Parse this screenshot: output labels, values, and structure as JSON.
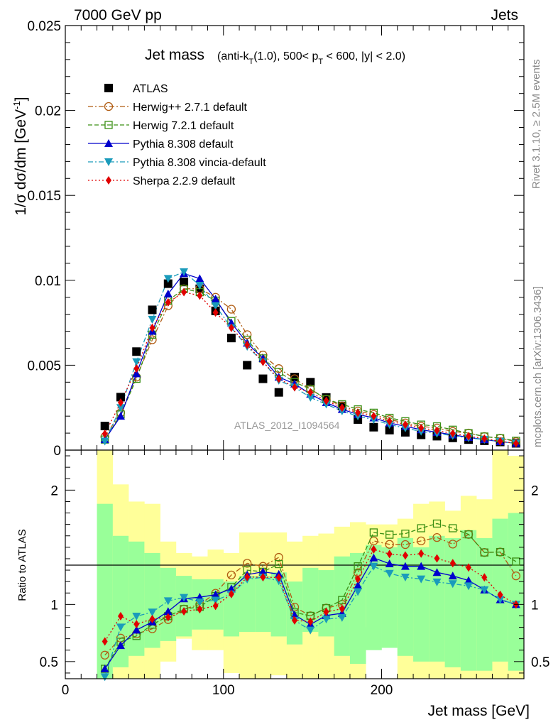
{
  "header": {
    "left": "7000 GeV pp",
    "right": "Jets"
  },
  "side_texts": {
    "rivet": "Rivet 3.1.10, ≥ 2.5M events",
    "mcplots": "mcplots.cern.ch [arXiv:1306.3436]"
  },
  "watermark": "ATLAS_2012_I1094564",
  "chart_data": {
    "type": "scatter",
    "title_main": "Jet mass",
    "title_detail_parts": [
      "(anti-k",
      "T",
      "(1.0), 500< p",
      "T",
      " < 600, |y| < 2.0)"
    ],
    "xlabel": "Jet mass [GeV]",
    "ylabel_parts": [
      "1/σ dσ/dm [GeV",
      "-1",
      "]"
    ],
    "ratio_ylabel": "Ratio to ATLAS",
    "xlim": [
      0,
      290
    ],
    "ylim": [
      0,
      0.025
    ],
    "ratio_ylim": [
      0.35,
      2.35
    ],
    "x_ticks": [
      0,
      100,
      200
    ],
    "y_ticks": [
      0,
      0.005,
      0.01,
      0.015,
      0.02,
      0.025
    ],
    "y_tick_labels": [
      "0",
      "0.005",
      "0.01",
      "0.015",
      "0.02",
      "0.025"
    ],
    "ratio_ticks": [
      0.5,
      1,
      2
    ],
    "ratio_tick_labels": [
      "0.5",
      "1",
      "2"
    ],
    "bin_edges": [
      20,
      30,
      40,
      50,
      60,
      70,
      80,
      90,
      100,
      110,
      120,
      130,
      140,
      150,
      160,
      170,
      180,
      190,
      200,
      210,
      220,
      230,
      240,
      250,
      260,
      270,
      280,
      290
    ],
    "x": [
      25,
      35,
      45,
      55,
      65,
      75,
      85,
      95,
      105,
      115,
      125,
      135,
      145,
      155,
      165,
      175,
      185,
      195,
      205,
      215,
      225,
      235,
      245,
      255,
      265,
      275,
      285
    ],
    "band_inner_up": [
      1.88,
      1.6,
      1.55,
      1.45,
      1.32,
      1.25,
      1.22,
      1.22,
      1.2,
      1.25,
      1.25,
      1.28,
      1.2,
      1.32,
      1.3,
      1.42,
      1.45,
      1.52,
      1.5,
      1.58,
      1.5,
      1.6,
      1.58,
      1.65,
      1.58,
      1.75,
      1.8
    ],
    "band_inner_down": [
      0.35,
      0.45,
      0.55,
      0.62,
      0.68,
      0.72,
      0.78,
      0.78,
      0.72,
      0.76,
      0.76,
      0.72,
      0.65,
      0.76,
      0.72,
      0.55,
      0.48,
      0.6,
      0.62,
      0.55,
      0.5,
      0.5,
      0.45,
      0.42,
      0.42,
      0.5,
      0.42
    ],
    "band_outer_up": [
      2.35,
      2.05,
      1.9,
      1.88,
      1.55,
      1.45,
      1.42,
      1.48,
      1.45,
      1.63,
      1.63,
      1.63,
      1.55,
      1.6,
      1.62,
      1.68,
      1.72,
      1.7,
      1.7,
      1.75,
      1.88,
      1.9,
      1.82,
      1.95,
      1.92,
      2.35,
      2.3
    ],
    "band_outer_down": [
      0.35,
      0.35,
      0.35,
      0.35,
      0.5,
      0.7,
      0.6,
      0.6,
      0.4,
      0.35,
      0.35,
      0.38,
      0.35,
      0.35,
      0.35,
      0.35,
      0.35,
      0.8,
      0.8,
      0.35,
      0.35,
      0.35,
      0.35,
      0.35,
      0.35,
      0.35,
      0.35
    ],
    "series": [
      {
        "name": "ATLAS",
        "color": "#000000",
        "marker": "square-filled",
        "line": "none",
        "values": [
          0.00142,
          0.00312,
          0.0058,
          0.00826,
          0.0098,
          0.0099,
          0.0095,
          0.0082,
          0.0066,
          0.005,
          0.0042,
          0.0034,
          0.0043,
          0.004,
          0.0031,
          0.0026,
          0.0018,
          0.00135,
          0.00118,
          0.00105,
          0.0009,
          0.00082,
          0.00072,
          0.00062,
          0.00055,
          0.00048,
          0.0004
        ]
      },
      {
        "name": "Herwig++ 2.7.1 default",
        "color": "#b05c12",
        "marker": "circle-open",
        "line": "dashdot",
        "values": [
          0.00079,
          0.0022,
          0.0043,
          0.0065,
          0.0085,
          0.0095,
          0.0095,
          0.009,
          0.0083,
          0.0068,
          0.0056,
          0.0048,
          0.0042,
          0.0036,
          0.003,
          0.0026,
          0.0023,
          0.0021,
          0.0018,
          0.0016,
          0.0014,
          0.0013,
          0.0011,
          0.001,
          0.0008,
          0.0007,
          0.0005
        ]
      },
      {
        "name": "Herwig 7.2.1 default",
        "color": "#3a8f14",
        "marker": "square-open",
        "line": "dashed",
        "values": [
          0.00062,
          0.0021,
          0.0042,
          0.0068,
          0.0088,
          0.0095,
          0.0093,
          0.0088,
          0.0076,
          0.0065,
          0.0054,
          0.0046,
          0.004,
          0.0036,
          0.003,
          0.0027,
          0.0024,
          0.0022,
          0.0019,
          0.0017,
          0.0015,
          0.0014,
          0.0012,
          0.001,
          0.0008,
          0.0007,
          0.00055
        ]
      },
      {
        "name": "Pythia 8.308 default",
        "color": "#0000cc",
        "marker": "triangle-up",
        "line": "solid",
        "values": [
          0.00062,
          0.002,
          0.0045,
          0.007,
          0.0092,
          0.0104,
          0.0101,
          0.0089,
          0.0075,
          0.0063,
          0.0054,
          0.0043,
          0.0039,
          0.0033,
          0.0028,
          0.0024,
          0.0021,
          0.0019,
          0.0016,
          0.0014,
          0.0012,
          0.00105,
          0.0009,
          0.00075,
          0.00062,
          0.0005,
          0.0004
        ]
      },
      {
        "name": "Pythia 8.308 vincia-default",
        "color": "#1a9bbb",
        "marker": "triangle-down",
        "line": "dashdot",
        "values": [
          0.00052,
          0.0025,
          0.0052,
          0.0077,
          0.0101,
          0.0105,
          0.0097,
          0.0085,
          0.0072,
          0.0061,
          0.0052,
          0.0041,
          0.0037,
          0.0031,
          0.0027,
          0.0023,
          0.002,
          0.0018,
          0.0015,
          0.0013,
          0.0011,
          0.00098,
          0.00085,
          0.00072,
          0.00062,
          0.0005,
          0.0004
        ]
      },
      {
        "name": "Sherpa 2.2.9 default",
        "color": "#e00000",
        "marker": "diamond",
        "line": "dotted",
        "values": [
          0.00096,
          0.0028,
          0.0048,
          0.0072,
          0.0087,
          0.0093,
          0.0091,
          0.0081,
          0.0072,
          0.0062,
          0.0052,
          0.0042,
          0.0037,
          0.0034,
          0.0029,
          0.0025,
          0.0022,
          0.002,
          0.0017,
          0.0015,
          0.0013,
          0.00115,
          0.00098,
          0.00082,
          0.00068,
          0.00052,
          0.0004
        ]
      }
    ],
    "legend_placement": "top-left",
    "band_colors": {
      "inner": "#99ff99",
      "outer": "#ffff99"
    }
  }
}
